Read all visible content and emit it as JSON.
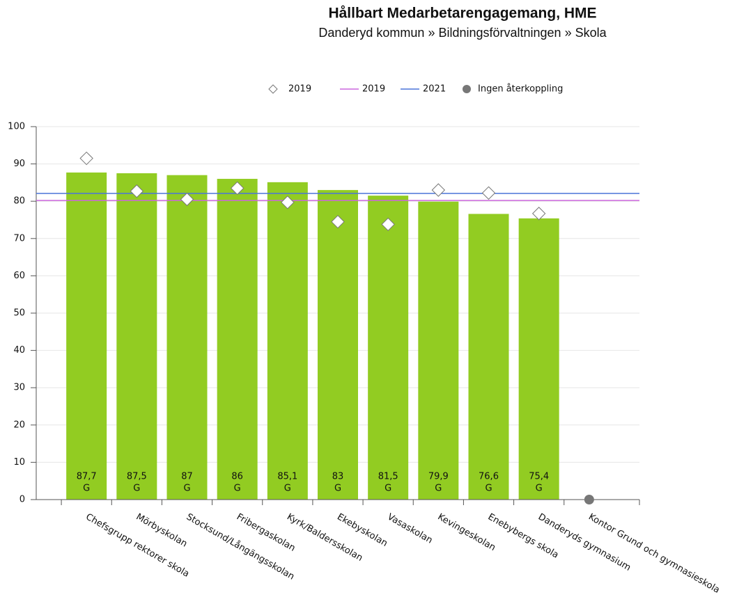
{
  "chart_data": {
    "type": "bar",
    "title": "Hållbart Medarbetarengagemang, HME",
    "subtitle": "Danderyd kommun » Bildningsförvaltningen » Skola",
    "categories": [
      "Chefsgrupp rektorer skola",
      "Mörbyskolan",
      "Stocksund/Långängsskolan",
      "Fribergaskolan",
      "Kyrk/Baldersskolan",
      "Ekebyskolan",
      "Vasaskolan",
      "Kevingeskolan",
      "Enebybergs skola",
      "Danderyds gymnasium",
      "Kontor Grund och gymnasieskola"
    ],
    "values": [
      87.7,
      87.5,
      87,
      86,
      85.1,
      83,
      81.5,
      79.9,
      76.6,
      75.4,
      null
    ],
    "value_labels": [
      "87,7",
      "87,5",
      "87",
      "86",
      "85,1",
      "83",
      "81,5",
      "79,9",
      "76,6",
      "75,4",
      null
    ],
    "grades": [
      "G",
      "G",
      "G",
      "G",
      "G",
      "G",
      "G",
      "G",
      "G",
      "G",
      null
    ],
    "color": "#92cc22",
    "markers": {
      "name": "2019",
      "values": [
        91.5,
        82.7,
        80.5,
        83.5,
        79.7,
        74.5,
        73.8,
        83,
        82.2,
        76.7,
        null
      ]
    },
    "reference_lines": [
      {
        "name": "2019",
        "color": "#cc66dd",
        "value": 80.2
      },
      {
        "name": "2021",
        "color": "#4a74d9",
        "value": 82.1
      }
    ],
    "no_feedback": {
      "name": "Ingen återkoppling",
      "color": "#777777",
      "values": [
        null,
        null,
        null,
        null,
        null,
        null,
        null,
        null,
        null,
        null,
        0
      ]
    },
    "ylim": [
      0,
      100
    ],
    "yticks": [
      0,
      10,
      20,
      30,
      40,
      50,
      60,
      70,
      80,
      90,
      100
    ],
    "grid": true
  }
}
